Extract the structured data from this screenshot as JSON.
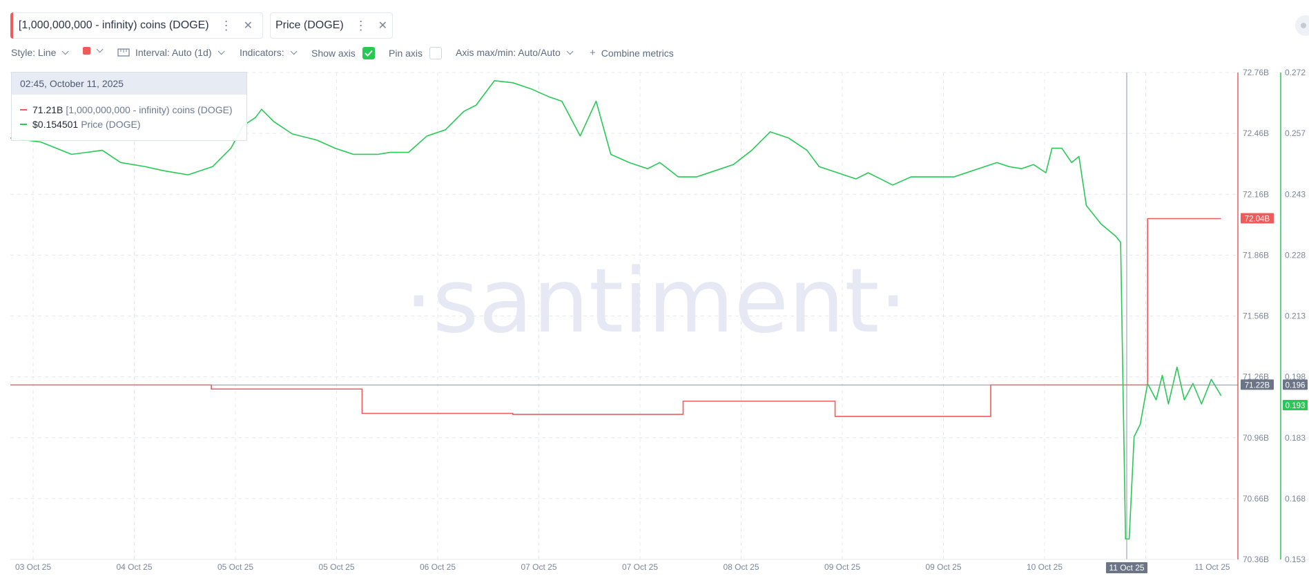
{
  "metrics": [
    {
      "label": "[1,000,000,000 - infinity) coins (DOGE)",
      "color": "#f05a5a",
      "menu_icon": "kebab-icon",
      "close_icon": "close-icon"
    },
    {
      "label": "Price (DOGE)",
      "color": "#26c953",
      "menu_icon": "kebab-icon",
      "close_icon": "close-icon"
    }
  ],
  "toolbar": {
    "style": "Style: Line",
    "color": "#f05a5a",
    "interval": "Interval: Auto (1d)",
    "indicators": "Indicators:",
    "show_axis": "Show axis",
    "show_axis_checked": true,
    "pin_axis": "Pin axis",
    "pin_axis_checked": false,
    "axis_maxmin": "Axis max/min: Auto/Auto",
    "combine": "Combine metrics"
  },
  "tooltip": {
    "time": "02:45, October 11, 2025",
    "rows": [
      {
        "value": "71.21B",
        "name": "[1,000,000,000 - infinity) coins (DOGE)",
        "color": "#f05a5a"
      },
      {
        "value": "$0.154501",
        "name": "Price (DOGE)",
        "color": "#26c953"
      }
    ]
  },
  "watermark": "·santiment·",
  "chart_data": {
    "type": "line",
    "x_ticks": [
      "03 Oct 25",
      "04 Oct 25",
      "05 Oct 25",
      "05 Oct 25",
      "06 Oct 25",
      "07 Oct 25",
      "07 Oct 25",
      "08 Oct 25",
      "09 Oct 25",
      "09 Oct 25",
      "10 Oct 25",
      "11 Oct 25"
    ],
    "x_highlight": "11 Oct 25",
    "series": [
      {
        "name": "[1,000,000,000 - infinity) coins (DOGE)",
        "color": "#f05a5a",
        "axis": "left",
        "axis_ticks": [
          "72.76B",
          "72.46B",
          "72.16B",
          "71.86B",
          "71.56B",
          "71.26B",
          "70.96B",
          "70.66B",
          "70.36B"
        ],
        "range": [
          70.36,
          72.76
        ],
        "last_label": "72.04B",
        "crosshair_label": "71.22B",
        "steps": [
          [
            0,
            71.22
          ],
          [
            0.164,
            71.2
          ],
          [
            0.287,
            71.08
          ],
          [
            0.41,
            71.075
          ],
          [
            0.549,
            71.14
          ],
          [
            0.673,
            71.065
          ],
          [
            0.8,
            71.22
          ],
          [
            0.925,
            71.22
          ],
          [
            0.928,
            72.04
          ],
          [
            0.988,
            72.04
          ]
        ]
      },
      {
        "name": "Price (DOGE)",
        "color": "#26c953",
        "axis": "right",
        "axis_ticks": [
          "0.272",
          "0.257",
          "0.243",
          "0.228",
          "0.213",
          "0.198",
          "0.183",
          "0.168",
          "0.153"
        ],
        "range": [
          0.153,
          0.272
        ],
        "last_label": "0.193",
        "crosshair_label": "0.196",
        "points": [
          [
            0.0,
            0.256
          ],
          [
            0.025,
            0.255
          ],
          [
            0.05,
            0.252
          ],
          [
            0.075,
            0.253
          ],
          [
            0.09,
            0.25
          ],
          [
            0.11,
            0.249
          ],
          [
            0.125,
            0.248
          ],
          [
            0.145,
            0.247
          ],
          [
            0.165,
            0.249
          ],
          [
            0.18,
            0.2535
          ],
          [
            0.19,
            0.259
          ],
          [
            0.2,
            0.261
          ],
          [
            0.205,
            0.263
          ],
          [
            0.215,
            0.26
          ],
          [
            0.23,
            0.257
          ],
          [
            0.25,
            0.2555
          ],
          [
            0.265,
            0.2535
          ],
          [
            0.28,
            0.252
          ],
          [
            0.3,
            0.252
          ],
          [
            0.31,
            0.2525
          ],
          [
            0.325,
            0.2525
          ],
          [
            0.34,
            0.2565
          ],
          [
            0.355,
            0.258
          ],
          [
            0.37,
            0.2625
          ],
          [
            0.38,
            0.264
          ],
          [
            0.395,
            0.27
          ],
          [
            0.41,
            0.2695
          ],
          [
            0.425,
            0.268
          ],
          [
            0.44,
            0.266
          ],
          [
            0.45,
            0.265
          ],
          [
            0.465,
            0.2565
          ],
          [
            0.478,
            0.265
          ],
          [
            0.49,
            0.252
          ],
          [
            0.505,
            0.25
          ],
          [
            0.52,
            0.2485
          ],
          [
            0.53,
            0.25
          ],
          [
            0.545,
            0.2465
          ],
          [
            0.56,
            0.2465
          ],
          [
            0.575,
            0.248
          ],
          [
            0.59,
            0.2495
          ],
          [
            0.605,
            0.253
          ],
          [
            0.62,
            0.2575
          ],
          [
            0.635,
            0.256
          ],
          [
            0.65,
            0.253
          ],
          [
            0.66,
            0.249
          ],
          [
            0.675,
            0.2475
          ],
          [
            0.69,
            0.246
          ],
          [
            0.7,
            0.2475
          ],
          [
            0.72,
            0.2445
          ],
          [
            0.735,
            0.2465
          ],
          [
            0.75,
            0.2465
          ],
          [
            0.77,
            0.2465
          ],
          [
            0.79,
            0.2485
          ],
          [
            0.805,
            0.25
          ],
          [
            0.815,
            0.249
          ],
          [
            0.825,
            0.2485
          ],
          [
            0.835,
            0.2495
          ],
          [
            0.845,
            0.2475
          ],
          [
            0.85,
            0.2535
          ],
          [
            0.858,
            0.2535
          ],
          [
            0.866,
            0.25
          ],
          [
            0.872,
            0.2515
          ],
          [
            0.878,
            0.2395
          ],
          [
            0.89,
            0.235
          ],
          [
            0.902,
            0.232
          ],
          [
            0.906,
            0.2305
          ],
          [
            0.91,
            0.158
          ],
          [
            0.913,
            0.158
          ],
          [
            0.917,
            0.183
          ],
          [
            0.922,
            0.186
          ],
          [
            0.928,
            0.196
          ],
          [
            0.935,
            0.192
          ],
          [
            0.94,
            0.198
          ],
          [
            0.945,
            0.191
          ],
          [
            0.952,
            0.2
          ],
          [
            0.958,
            0.192
          ],
          [
            0.965,
            0.196
          ],
          [
            0.972,
            0.191
          ],
          [
            0.98,
            0.197
          ],
          [
            0.988,
            0.193
          ]
        ]
      }
    ],
    "grid": true,
    "crosshair": true
  }
}
